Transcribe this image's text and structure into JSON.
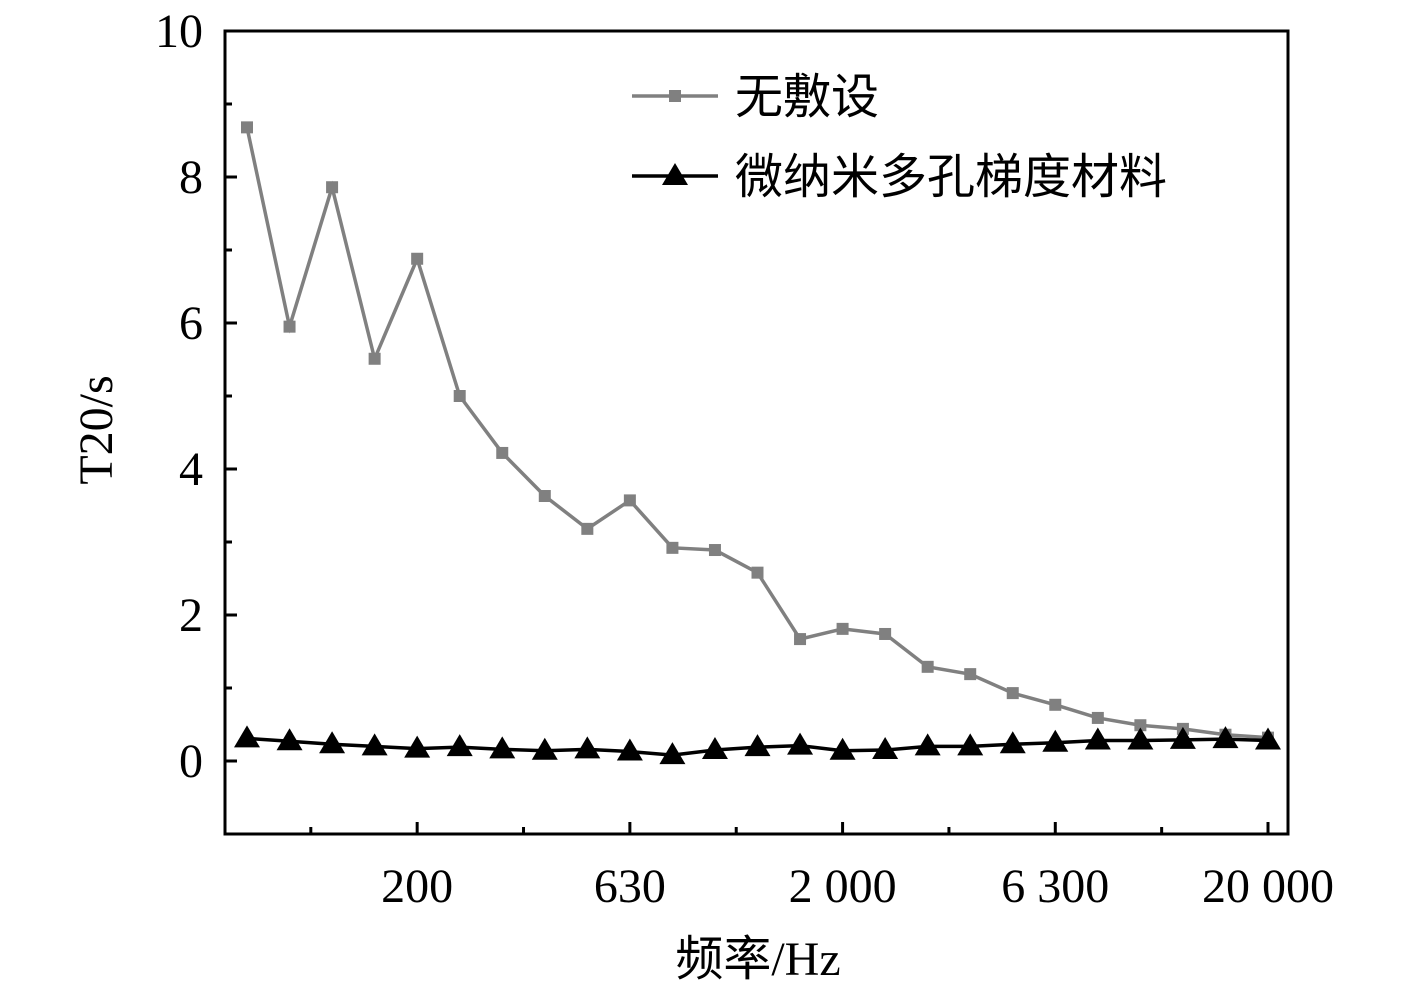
{
  "chart_data": {
    "type": "line",
    "categories": [
      null,
      null,
      null,
      null,
      "200",
      null,
      null,
      null,
      null,
      "630",
      null,
      null,
      null,
      null,
      "2 000",
      null,
      null,
      null,
      null,
      "6 300",
      null,
      null,
      null,
      null,
      "20 000"
    ],
    "series": [
      {
        "name": "无敷设",
        "color": "#808080",
        "marker": "square",
        "values": [
          8.68,
          5.95,
          7.86,
          5.51,
          6.88,
          5.0,
          4.22,
          3.63,
          3.18,
          3.57,
          2.92,
          2.89,
          2.58,
          1.67,
          1.81,
          1.74,
          1.29,
          1.19,
          0.93,
          0.77,
          0.59,
          0.49,
          0.44,
          0.36,
          0.32
        ]
      },
      {
        "name": "微纳米多孔梯度材料",
        "color": "#000000",
        "marker": "triangle",
        "values": [
          0.31,
          0.27,
          0.23,
          0.2,
          0.17,
          0.19,
          0.16,
          0.14,
          0.16,
          0.13,
          0.08,
          0.15,
          0.19,
          0.21,
          0.14,
          0.15,
          0.2,
          0.2,
          0.23,
          0.25,
          0.28,
          0.28,
          0.29,
          0.3,
          0.28
        ]
      }
    ],
    "xlabel": "频率/Hz",
    "ylabel": "T20/s",
    "ylim": [
      -1,
      10
    ],
    "yticks": [
      0,
      2,
      4,
      6,
      8,
      10
    ],
    "legend": "upper right"
  }
}
